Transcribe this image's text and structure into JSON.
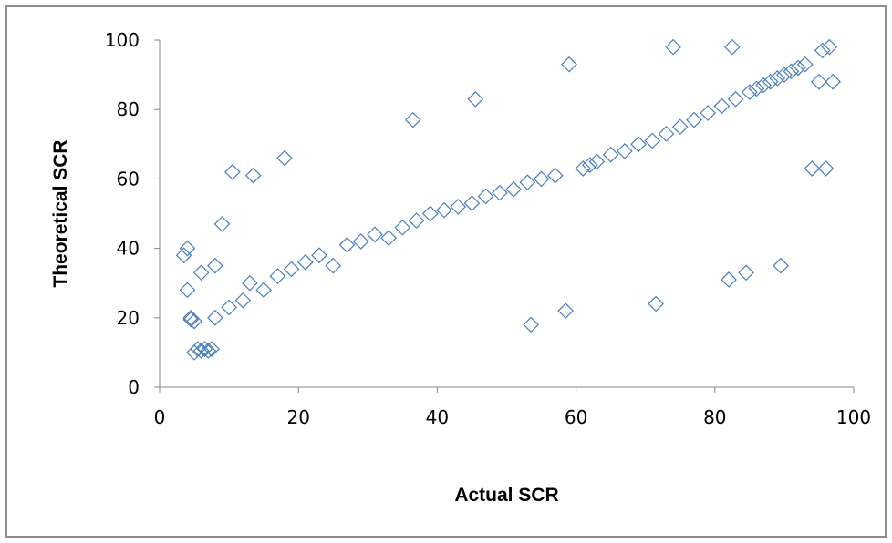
{
  "chart_data": {
    "type": "scatter",
    "title": "",
    "xlabel": "Actual SCR",
    "ylabel": "Theoretical SCR",
    "xlim": [
      0,
      100
    ],
    "ylim": [
      0,
      100
    ],
    "x_ticks": [
      "0",
      "20",
      "40",
      "60",
      "80",
      "100"
    ],
    "y_ticks": [
      "0",
      "20",
      "40",
      "60",
      "80",
      "100"
    ],
    "marker": "diamond-open",
    "marker_color": "#4a7ebb",
    "grid": false,
    "legend": "none",
    "series": [
      {
        "x": [
          3.5,
          4.0,
          4.5,
          5.0,
          5.5,
          6.0,
          6.5,
          7.0,
          7.5,
          8.0,
          10.5,
          13.5,
          18.0,
          4.5,
          5.0,
          4.0,
          6.0,
          8.0,
          9.0,
          10.0,
          12.0,
          13.0,
          15.0,
          17.0,
          19.0,
          21.0,
          23.0,
          25.0,
          27.0,
          29.0,
          31.0,
          33.0,
          35.0,
          37.0,
          36.5,
          39.0,
          41.0,
          43.0,
          45.0,
          45.5,
          47.0,
          49.0,
          51.0,
          53.0,
          53.5,
          55.0,
          57.0,
          58.5,
          59.0,
          61.0,
          62.0,
          63.0,
          65.0,
          67.0,
          69.0,
          71.0,
          71.5,
          73.0,
          74.0,
          75.0,
          77.0,
          79.0,
          81.0,
          82.0,
          82.5,
          83.0,
          84.5,
          85.0,
          86.0,
          87.0,
          88.0,
          89.0,
          89.5,
          90.0,
          91.0,
          92.0,
          93.0,
          94.0,
          95.0,
          95.5,
          96.0,
          96.5,
          97.0
        ],
        "y": [
          38.0,
          40.0,
          20.0,
          10.0,
          11.0,
          10.5,
          11.0,
          10.5,
          11.0,
          20.0,
          62.0,
          61.0,
          66.0,
          19.5,
          19.0,
          28.0,
          33.0,
          35.0,
          47.0,
          23.0,
          25.0,
          30.0,
          28.0,
          32.0,
          34.0,
          36.0,
          38.0,
          35.0,
          41.0,
          42.0,
          44.0,
          43.0,
          46.0,
          48.0,
          77.0,
          50.0,
          51.0,
          52.0,
          53.0,
          83.0,
          55.0,
          56.0,
          57.0,
          59.0,
          18.0,
          60.0,
          61.0,
          22.0,
          93.0,
          63.0,
          64.0,
          65.0,
          67.0,
          68.0,
          70.0,
          71.0,
          24.0,
          73.0,
          98.0,
          75.0,
          77.0,
          79.0,
          81.0,
          31.0,
          98.0,
          83.0,
          33.0,
          85.0,
          86.0,
          87.0,
          88.0,
          89.0,
          35.0,
          90.0,
          91.0,
          92.0,
          93.0,
          63.0,
          88.0,
          97.0,
          63.0,
          98.0,
          88.0
        ]
      }
    ]
  }
}
